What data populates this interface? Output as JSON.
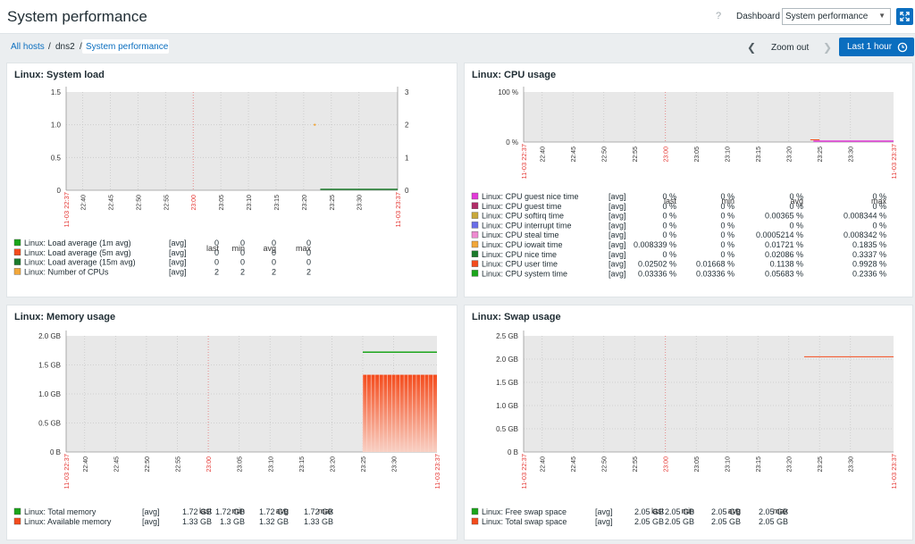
{
  "header": {
    "title": "System performance",
    "help": "?",
    "dashboard_label": "Dashboard",
    "dashboard_selected": "System performance"
  },
  "breadcrumb": {
    "items": [
      "All hosts",
      "dns2",
      "System performance"
    ],
    "separator": "/"
  },
  "time_controls": {
    "zoom_out": "Zoom out",
    "range": "Last 1 hour"
  },
  "colors": {
    "accent": "#0a6ebf",
    "gridline": "#c8c8c8",
    "plot_bg": "#e8e8e8",
    "red_label": "#e53935"
  },
  "x_axis": {
    "ticks": [
      "22:40",
      "22:45",
      "22:50",
      "22:55",
      "23:00",
      "23:05",
      "23:10",
      "23:15",
      "23:20",
      "23:25",
      "23:30"
    ],
    "start_label": "11-03 22:37",
    "end_label": "11-03 23:37",
    "red_tick": "23:00"
  },
  "widgets": {
    "system_load": {
      "title": "Linux: System load"
    },
    "cpu_usage": {
      "title": "Linux: CPU usage"
    },
    "memory_usage": {
      "title": "Linux: Memory usage"
    },
    "swap_usage": {
      "title": "Linux: Swap usage"
    }
  },
  "chart_data": [
    {
      "type": "line",
      "title": "Linux: System load",
      "y_ticks": [
        "1.5",
        "1.0",
        "0.5",
        "0"
      ],
      "y2_ticks": [
        "3",
        "2",
        "1",
        "0"
      ],
      "columns": [
        "last",
        "min",
        "avg",
        "max"
      ],
      "legend": [
        {
          "name": "Linux: Load average (1m avg)",
          "color": "#1aa51a",
          "fn": "[avg]",
          "values": [
            "0",
            "0",
            "0",
            "0"
          ]
        },
        {
          "name": "Linux: Load average (5m avg)",
          "color": "#f44b1c",
          "fn": "[avg]",
          "values": [
            "0",
            "0",
            "0",
            "0"
          ]
        },
        {
          "name": "Linux: Load average (15m avg)",
          "color": "#1b7a2b",
          "fn": "[avg]",
          "values": [
            "0",
            "0",
            "0",
            "0"
          ]
        },
        {
          "name": "Linux: Number of CPUs",
          "color": "#f2a73a",
          "fn": "[avg]",
          "values": [
            "2",
            "2",
            "2",
            "2"
          ]
        }
      ]
    },
    {
      "type": "area",
      "title": "Linux: CPU usage",
      "y_ticks": [
        "100 %",
        "0 %"
      ],
      "columns": [
        "last",
        "min",
        "avg",
        "max"
      ],
      "legend": [
        {
          "name": "Linux: CPU guest nice time",
          "color": "#e33ad9",
          "fn": "[avg]",
          "values": [
            "0 %",
            "0 %",
            "0 %",
            "0 %"
          ]
        },
        {
          "name": "Linux: CPU guest time",
          "color": "#b02d68",
          "fn": "[avg]",
          "values": [
            "0 %",
            "0 %",
            "0 %",
            "0 %"
          ]
        },
        {
          "name": "Linux: CPU softirq time",
          "color": "#c9a83a",
          "fn": "[avg]",
          "values": [
            "0 %",
            "0 %",
            "0.00365 %",
            "0.008344 %"
          ]
        },
        {
          "name": "Linux: CPU interrupt time",
          "color": "#6a6ee8",
          "fn": "[avg]",
          "values": [
            "0 %",
            "0 %",
            "0 %",
            "0 %"
          ]
        },
        {
          "name": "Linux: CPU steal time",
          "color": "#ee8ad0",
          "fn": "[avg]",
          "values": [
            "0 %",
            "0 %",
            "0.0005214 %",
            "0.008342 %"
          ]
        },
        {
          "name": "Linux: CPU iowait time",
          "color": "#f2a73a",
          "fn": "[avg]",
          "values": [
            "0.008339 %",
            "0 %",
            "0.01721 %",
            "0.1835 %"
          ]
        },
        {
          "name": "Linux: CPU nice time",
          "color": "#1b7a2b",
          "fn": "[avg]",
          "values": [
            "0 %",
            "0 %",
            "0.02086 %",
            "0.3337 %"
          ]
        },
        {
          "name": "Linux: CPU user time",
          "color": "#f44b1c",
          "fn": "[avg]",
          "values": [
            "0.02502 %",
            "0.01668 %",
            "0.1138 %",
            "0.9928 %"
          ]
        },
        {
          "name": "Linux: CPU system time",
          "color": "#1aa51a",
          "fn": "[avg]",
          "values": [
            "0.03336 %",
            "0.03336 %",
            "0.05683 %",
            "0.2336 %"
          ]
        }
      ]
    },
    {
      "type": "area",
      "title": "Linux: Memory usage",
      "y_ticks": [
        "2.0 GB",
        "1.5 GB",
        "1.0 GB",
        "0.5 GB",
        "0 B"
      ],
      "columns": [
        "last",
        "min",
        "avg",
        "max"
      ],
      "legend": [
        {
          "name": "Linux: Total memory",
          "color": "#1aa51a",
          "fn": "[avg]",
          "values": [
            "1.72 GB",
            "1.72 GB",
            "1.72 GB",
            "1.72 GB"
          ]
        },
        {
          "name": "Linux: Available memory",
          "color": "#f44b1c",
          "fn": "[avg]",
          "values": [
            "1.33 GB",
            "1.3 GB",
            "1.32 GB",
            "1.33 GB"
          ]
        }
      ]
    },
    {
      "type": "line",
      "title": "Linux: Swap usage",
      "y_ticks": [
        "2.5 GB",
        "2.0 GB",
        "1.5 GB",
        "1.0 GB",
        "0.5 GB",
        "0 B"
      ],
      "columns": [
        "last",
        "min",
        "avg",
        "max"
      ],
      "legend": [
        {
          "name": "Linux: Free swap space",
          "color": "#1aa51a",
          "fn": "[avg]",
          "values": [
            "2.05 GB",
            "2.05 GB",
            "2.05 GB",
            "2.05 GB"
          ]
        },
        {
          "name": "Linux: Total swap space",
          "color": "#f44b1c",
          "fn": "[avg]",
          "values": [
            "2.05 GB",
            "2.05 GB",
            "2.05 GB",
            "2.05 GB"
          ]
        }
      ]
    }
  ]
}
